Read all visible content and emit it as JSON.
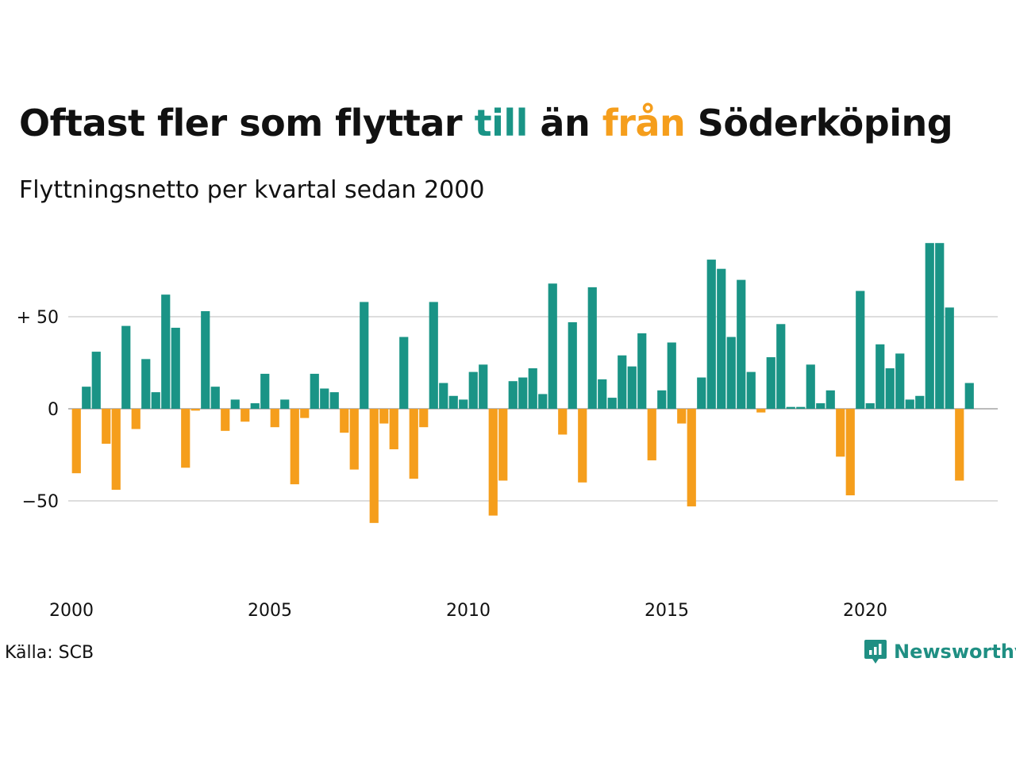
{
  "title": {
    "part1": "Oftast fler som flyttar ",
    "till": "till",
    "part2": " än ",
    "fran": "från",
    "part3": " Söderköping"
  },
  "subtitle": "Flyttningsnetto per kvartal sedan 2000",
  "source": "Källa: SCB",
  "logo_text": "Newsworthy",
  "colors": {
    "positive": "#1a9486",
    "negative": "#f59e1c",
    "grid": "#dddddd"
  },
  "chart_data": {
    "type": "bar",
    "start_year": 2000,
    "periods_per_year": 4,
    "x_tick_labels": [
      "2000",
      "2005",
      "2010",
      "2015",
      "2020"
    ],
    "y_ticks": [
      50,
      0,
      -50
    ],
    "y_tick_labels": [
      "+ 50",
      "0",
      "−50"
    ],
    "ylim": [
      -80,
      95
    ],
    "grid": true,
    "values": [
      -35,
      12,
      31,
      -19,
      -44,
      45,
      -11,
      27,
      9,
      62,
      44,
      -32,
      -1,
      53,
      12,
      -12,
      5,
      -7,
      3,
      19,
      -10,
      5,
      -41,
      -5,
      19,
      11,
      9,
      -13,
      -33,
      58,
      -62,
      -8,
      -22,
      39,
      -38,
      -10,
      58,
      14,
      7,
      5,
      20,
      24,
      -58,
      -39,
      15,
      17,
      22,
      8,
      68,
      -14,
      47,
      -40,
      66,
      16,
      6,
      29,
      23,
      41,
      -28,
      10,
      36,
      -8,
      -53,
      17,
      81,
      76,
      39,
      70,
      20,
      -2,
      28,
      46,
      1,
      1,
      24,
      3,
      10,
      -26,
      -47,
      64,
      3,
      35,
      22,
      30,
      5,
      7,
      90,
      90,
      55,
      -39,
      14
    ]
  }
}
